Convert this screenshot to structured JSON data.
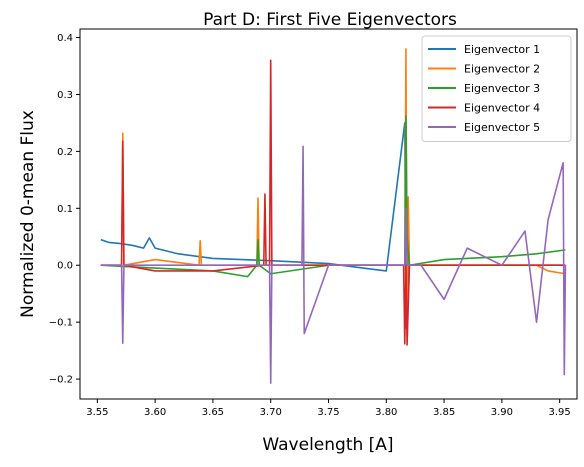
{
  "chart_data": {
    "type": "line",
    "title": "Part D: First Five Eigenvectors",
    "xlabel": "Wavelength [A]",
    "ylabel": "Normalized 0-mean Flux",
    "xlim": [
      3.535,
      3.965
    ],
    "ylim": [
      -0.235,
      0.415
    ],
    "x_ticks": [
      3.55,
      3.6,
      3.65,
      3.7,
      3.75,
      3.8,
      3.85,
      3.9,
      3.95
    ],
    "x_tick_labels": [
      "3.55",
      "3.60",
      "3.65",
      "3.70",
      "3.75",
      "3.80",
      "3.85",
      "3.90",
      "3.95"
    ],
    "y_ticks": [
      -0.2,
      -0.1,
      0.0,
      0.1,
      0.2,
      0.3,
      0.4
    ],
    "y_tick_labels": [
      "−0.2",
      "−0.1",
      "0.0",
      "0.1",
      "0.2",
      "0.3",
      "0.4"
    ],
    "grid": false,
    "legend_position": "top-right",
    "series": [
      {
        "name": "Eigenvector 1",
        "color": "#1f77b4",
        "x": [
          3.553,
          3.56,
          3.57,
          3.58,
          3.59,
          3.595,
          3.6,
          3.61,
          3.62,
          3.65,
          3.7,
          3.75,
          3.78,
          3.8,
          3.816,
          3.817,
          3.818,
          3.819,
          3.82,
          3.85,
          3.9,
          3.93,
          3.955
        ],
        "values": [
          0.045,
          0.04,
          0.038,
          0.035,
          0.03,
          0.048,
          0.03,
          0.025,
          0.02,
          0.012,
          0.008,
          0.003,
          -0.005,
          -0.01,
          0.25,
          -0.11,
          0.1,
          -0.05,
          0.0,
          0.0,
          0.0,
          0.0,
          0.0
        ]
      },
      {
        "name": "Eigenvector 2",
        "color": "#ff7f0e",
        "x": [
          3.553,
          3.571,
          3.572,
          3.573,
          3.6,
          3.638,
          3.639,
          3.64,
          3.688,
          3.689,
          3.69,
          3.7,
          3.75,
          3.8,
          3.816,
          3.817,
          3.818,
          3.819,
          3.82,
          3.85,
          3.9,
          3.93,
          3.94,
          3.955
        ],
        "values": [
          0.0,
          0.0,
          0.232,
          0.0,
          0.01,
          0.0,
          0.043,
          0.0,
          0.0,
          0.118,
          0.0,
          0.0,
          0.0,
          0.0,
          0.0,
          0.38,
          -0.1,
          0.12,
          0.0,
          0.0,
          0.0,
          0.0,
          -0.01,
          -0.015
        ]
      },
      {
        "name": "Eigenvector 3",
        "color": "#2ca02c",
        "x": [
          3.553,
          3.6,
          3.65,
          3.68,
          3.688,
          3.689,
          3.69,
          3.7,
          3.75,
          3.8,
          3.816,
          3.817,
          3.818,
          3.82,
          3.85,
          3.9,
          3.93,
          3.955
        ],
        "values": [
          0.0,
          -0.005,
          -0.01,
          -0.02,
          0.0,
          0.045,
          0.0,
          -0.015,
          0.0,
          0.0,
          0.0,
          0.262,
          0.05,
          0.0,
          0.01,
          0.015,
          0.02,
          0.027
        ]
      },
      {
        "name": "Eigenvector 4",
        "color": "#d62728",
        "x": [
          3.553,
          3.571,
          3.572,
          3.573,
          3.6,
          3.65,
          3.694,
          3.695,
          3.696,
          3.699,
          3.7,
          3.701,
          3.75,
          3.8,
          3.815,
          3.816,
          3.817,
          3.818,
          3.82,
          3.85,
          3.9,
          3.955
        ],
        "values": [
          0.0,
          0.0,
          0.218,
          0.0,
          -0.01,
          -0.01,
          0.0,
          0.125,
          0.0,
          0.0,
          0.36,
          0.0,
          0.0,
          0.0,
          0.0,
          -0.138,
          0.0,
          -0.14,
          0.0,
          0.0,
          0.0,
          0.0
        ]
      },
      {
        "name": "Eigenvector 5",
        "color": "#9467bd",
        "x": [
          3.553,
          3.571,
          3.572,
          3.573,
          3.6,
          3.65,
          3.699,
          3.7,
          3.701,
          3.727,
          3.728,
          3.729,
          3.75,
          3.8,
          3.816,
          3.817,
          3.818,
          3.83,
          3.85,
          3.87,
          3.9,
          3.92,
          3.93,
          3.94,
          3.953,
          3.954,
          3.955
        ],
        "values": [
          0.0,
          0.0,
          -0.137,
          0.0,
          0.0,
          0.0,
          0.0,
          -0.207,
          0.0,
          0.0,
          0.209,
          -0.12,
          0.0,
          0.0,
          0.0,
          0.1,
          0.0,
          0.0,
          -0.06,
          0.03,
          0.0,
          0.06,
          -0.1,
          0.08,
          0.18,
          -0.192,
          0.0
        ]
      }
    ]
  }
}
